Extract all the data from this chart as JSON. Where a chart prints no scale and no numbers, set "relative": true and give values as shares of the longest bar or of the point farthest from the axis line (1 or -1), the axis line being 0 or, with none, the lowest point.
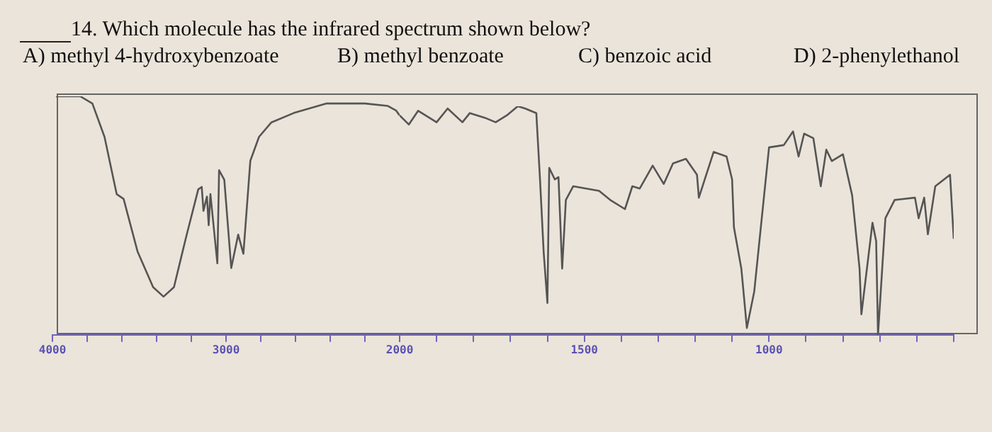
{
  "chart_data": [
    {
      "type": "line",
      "title": "14. Which molecule has the infrared spectrum shown below?",
      "annotations": [
        "A) methyl 4-hydroxybenzoate",
        "B) methyl benzoate",
        "C) benzoic acid",
        "D) 2-phenylethanol"
      ],
      "relative": true,
      "color": "#555555",
      "xlim": [
        4000,
        2000
      ],
      "xticks": [
        4000,
        {
          "value": 3800,
          "label": null
        },
        {
          "value": 3600,
          "label": null
        },
        {
          "value": 3400,
          "label": null
        },
        {
          "value": 3200,
          "label": null
        },
        3000,
        {
          "value": 2800,
          "label": null
        },
        {
          "value": 2600,
          "label": null
        },
        {
          "value": 2400,
          "label": null
        },
        {
          "value": 2200,
          "label": null
        },
        {
          "value": 2000,
          "label": null
        }
      ],
      "x": [
        3980,
        3840,
        3770,
        3700,
        3630,
        3590,
        3510,
        3420,
        3360,
        3300,
        3230,
        3160,
        3140,
        3130,
        3110,
        3100,
        3090,
        3050,
        3040,
        3010,
        2970,
        2930,
        2900,
        2860,
        2810,
        2740,
        2610,
        2420,
        2200,
        2070,
        2020,
        2000
      ],
      "values": [
        1.0,
        1.0,
        0.97,
        0.83,
        0.59,
        0.57,
        0.35,
        0.2,
        0.16,
        0.2,
        0.41,
        0.61,
        0.62,
        0.52,
        0.58,
        0.46,
        0.59,
        0.3,
        0.69,
        0.65,
        0.28,
        0.42,
        0.34,
        0.73,
        0.83,
        0.89,
        0.93,
        0.97,
        0.97,
        0.96,
        0.94,
        0.92
      ]
    },
    {
      "type": "line",
      "relative": true,
      "color": "#555555",
      "xlim": [
        2000,
        500
      ],
      "xticks": [
        2000,
        {
          "value": 1900,
          "label": null
        },
        {
          "value": 1800,
          "label": null
        },
        {
          "value": 1700,
          "label": null
        },
        {
          "value": 1600,
          "label": null
        },
        1500,
        {
          "value": 1400,
          "label": null
        },
        {
          "value": 1300,
          "label": null
        },
        {
          "value": 1200,
          "label": null
        },
        {
          "value": 1100,
          "label": null
        },
        1000,
        {
          "value": 900,
          "label": null
        },
        {
          "value": 800,
          "label": null
        },
        {
          "value": 700,
          "label": null
        },
        {
          "value": 600,
          "label": null
        },
        {
          "value": 500,
          "label": null
        }
      ],
      "x": [
        2000,
        1975,
        1950,
        1900,
        1870,
        1830,
        1810,
        1770,
        1740,
        1710,
        1680,
        1660,
        1630,
        1620,
        1610,
        1600,
        1595,
        1580,
        1570,
        1560,
        1550,
        1530,
        1460,
        1430,
        1390,
        1370,
        1350,
        1315,
        1285,
        1260,
        1225,
        1195,
        1190,
        1150,
        1115,
        1100,
        1095,
        1075,
        1060,
        1040,
        1000,
        960,
        935,
        920,
        905,
        880,
        860,
        845,
        830,
        800,
        775,
        755,
        750,
        720,
        710,
        705,
        685,
        660,
        605,
        595,
        580,
        570,
        550,
        510,
        500
      ],
      "values": [
        0.96,
        0.92,
        0.98,
        0.93,
        0.99,
        0.93,
        0.97,
        0.95,
        0.93,
        0.96,
        1.0,
        0.99,
        0.97,
        0.68,
        0.36,
        0.14,
        0.73,
        0.68,
        0.69,
        0.29,
        0.59,
        0.65,
        0.63,
        0.59,
        0.55,
        0.65,
        0.64,
        0.74,
        0.66,
        0.75,
        0.77,
        0.7,
        0.6,
        0.8,
        0.78,
        0.68,
        0.47,
        0.29,
        0.03,
        0.19,
        0.82,
        0.83,
        0.89,
        0.78,
        0.88,
        0.86,
        0.65,
        0.81,
        0.76,
        0.79,
        0.61,
        0.29,
        0.09,
        0.49,
        0.41,
        0,
        0.51,
        0.59,
        0.6,
        0.51,
        0.6,
        0.44,
        0.65,
        0.7,
        0.42
      ]
    }
  ]
}
